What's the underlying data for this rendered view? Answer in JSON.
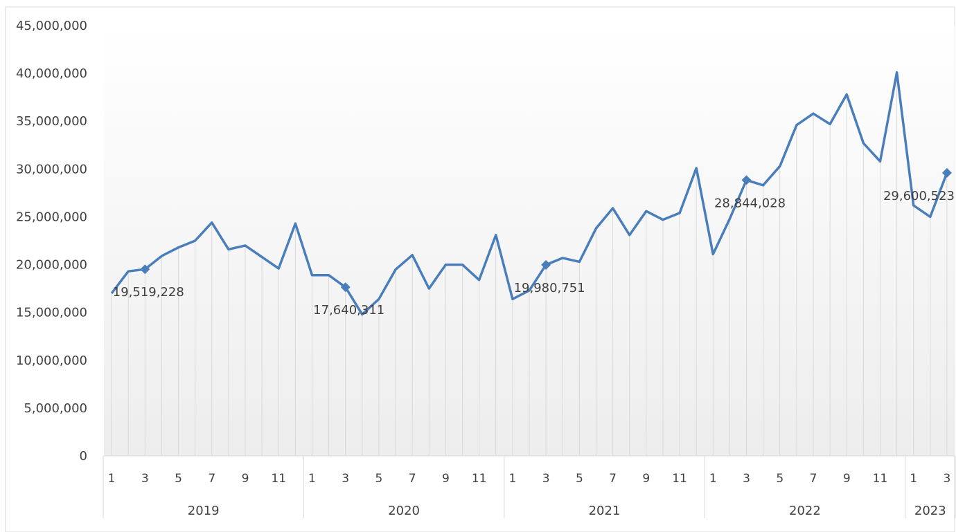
{
  "chart_data": {
    "type": "line",
    "title": "",
    "xlabel": "",
    "ylabel": "",
    "ylim": [
      0,
      45000000
    ],
    "yticks": [
      0,
      5000000,
      10000000,
      15000000,
      20000000,
      25000000,
      30000000,
      35000000,
      40000000,
      45000000
    ],
    "ytick_labels": [
      "0",
      "5,000,000",
      "10,000,000",
      "15,000,000",
      "20,000,000",
      "25,000,000",
      "30,000,000",
      "35,000,000",
      "40,000,000",
      "45,000,000"
    ],
    "years": [
      {
        "label": "2019",
        "months": 12
      },
      {
        "label": "2020",
        "months": 12
      },
      {
        "label": "2021",
        "months": 12
      },
      {
        "label": "2022",
        "months": 12
      },
      {
        "label": "2023",
        "months": 3
      }
    ],
    "x_month_tick_labels": [
      "1",
      "3",
      "5",
      "7",
      "9",
      "11"
    ],
    "values": [
      17000000,
      19300000,
      19519228,
      20900000,
      21800000,
      22500000,
      24400000,
      21600000,
      22000000,
      20800000,
      19600000,
      24300000,
      18900000,
      18900000,
      17640311,
      14800000,
      16400000,
      19500000,
      21000000,
      17500000,
      20000000,
      20000000,
      18400000,
      23100000,
      16400000,
      17300000,
      19980751,
      20700000,
      20300000,
      23800000,
      25900000,
      23100000,
      25600000,
      24700000,
      25400000,
      30100000,
      21100000,
      24800000,
      28844028,
      28300000,
      30300000,
      34600000,
      35800000,
      34700000,
      37800000,
      32700000,
      30800000,
      40100000,
      26200000,
      25000000,
      29600523
    ],
    "markers": [
      {
        "index": 2,
        "label": "19,519,228"
      },
      {
        "index": 14,
        "label": "17,640,311"
      },
      {
        "index": 26,
        "label": "19,980,751"
      },
      {
        "index": 38,
        "label": "28,844,028"
      },
      {
        "index": 50,
        "label": "29,600,523"
      }
    ],
    "colors": {
      "line": "#4A7EBB",
      "drop_lines": "#D9D9D9",
      "axis": "#D9D9D9",
      "text": "#404040",
      "plot_gradient_top": "#FFFFFF",
      "plot_gradient_bottom": "#EDEDED"
    },
    "grid": false,
    "legend": "none"
  }
}
